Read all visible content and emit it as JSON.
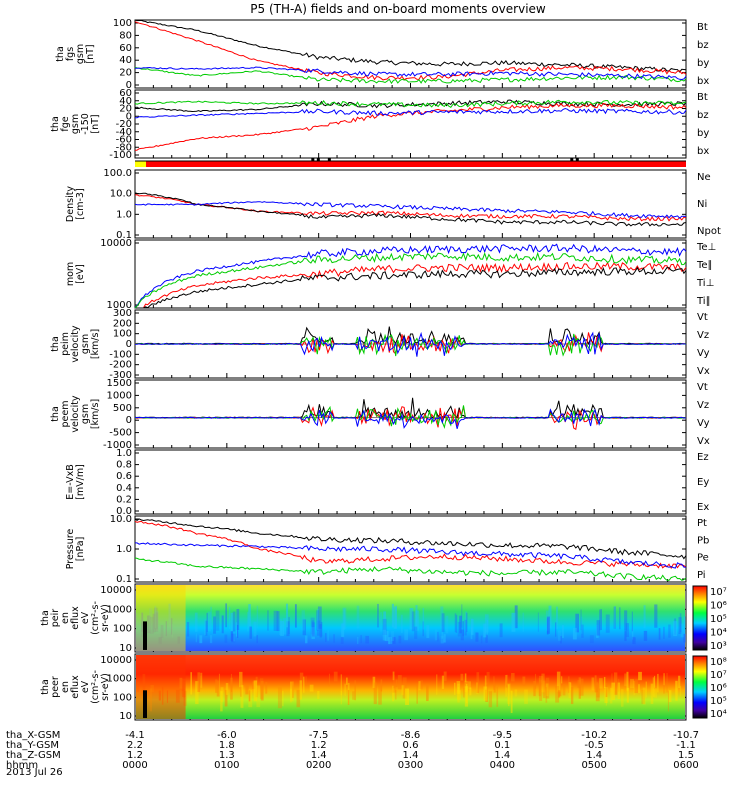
{
  "title": "P5 (TH-A) fields and on-board moments overview",
  "date": "2013 Jul 26",
  "colors": {
    "black": "#000000",
    "red": "#ff0000",
    "green": "#00cc00",
    "blue": "#0000ff",
    "yellow": "#ffff00",
    "lightgreen": "#22dd22"
  },
  "x_axis": {
    "rows": [
      {
        "label": "tha_X-GSM",
        "values": [
          "-4.1",
          "-6.0",
          "-7.5",
          "-8.6",
          "-9.5",
          "-10.2",
          "-10.7"
        ]
      },
      {
        "label": "tha_Y-GSM",
        "values": [
          "2.2",
          "1.8",
          "1.2",
          "0.6",
          "0.1",
          "-0.5",
          "-1.1"
        ]
      },
      {
        "label": "tha_Z-GSM",
        "values": [
          "1.2",
          "1.3",
          "1.4",
          "1.4",
          "1.4",
          "1.4",
          "1.5"
        ]
      },
      {
        "label": "hhmm",
        "values": [
          "0000",
          "0100",
          "0200",
          "0300",
          "0400",
          "0500",
          "0600"
        ]
      }
    ]
  },
  "chart_data": [
    {
      "type": "line",
      "id": "fgs",
      "ylabel": [
        "tha",
        "fgs",
        "gsm",
        "[nT]"
      ],
      "yticks": [
        "100",
        "80",
        "60",
        "40",
        "20",
        "0"
      ],
      "ylim": [
        0,
        100
      ],
      "series": [
        {
          "name": "Bt",
          "color": "black",
          "approx": [
            100,
            85,
            62,
            45,
            38,
            35,
            37,
            34,
            30,
            25
          ]
        },
        {
          "name": "bz",
          "color": "red",
          "approx": [
            98,
            70,
            40,
            22,
            15,
            16,
            26,
            30,
            28,
            22
          ]
        },
        {
          "name": "by",
          "color": "green",
          "approx": [
            30,
            18,
            25,
            12,
            10,
            10,
            12,
            15,
            16,
            12
          ]
        },
        {
          "name": "bx",
          "color": "blue",
          "approx": [
            30,
            28,
            30,
            25,
            20,
            20,
            22,
            20,
            18,
            15
          ]
        }
      ]
    },
    {
      "type": "line",
      "id": "fge",
      "ylabel": [
        "tha",
        "fge",
        "gsm",
        "-150",
        "[nT]"
      ],
      "yticks": [
        "60",
        "40",
        "20",
        "0",
        "-20",
        "-40",
        "-60",
        "-80",
        "-100"
      ],
      "ylim": [
        -110,
        65
      ],
      "legend_overlap": [
        "Bt",
        "bz",
        "by"
      ],
      "series": [
        {
          "name": "Bt",
          "color": "black",
          "approx": [
            20,
            10,
            15,
            30,
            25,
            30,
            35,
            30,
            28,
            30
          ]
        },
        {
          "name": "bz",
          "color": "red",
          "approx": [
            -90,
            -60,
            -50,
            -30,
            0,
            10,
            20,
            25,
            25,
            20
          ]
        },
        {
          "name": "by",
          "color": "green",
          "approx": [
            30,
            35,
            30,
            32,
            28,
            25,
            30,
            35,
            32,
            30
          ]
        },
        {
          "name": "bx",
          "color": "blue",
          "approx": [
            -5,
            0,
            5,
            10,
            5,
            8,
            10,
            12,
            10,
            8
          ]
        }
      ]
    },
    {
      "type": "flags",
      "id": "flags",
      "segments": [
        {
          "color": "yellow",
          "from": 0,
          "to": 0.02
        },
        {
          "color": "red",
          "from": 0.02,
          "to": 1
        }
      ]
    },
    {
      "type": "line",
      "id": "density",
      "ylabel": [
        "Density",
        "[cm-3]"
      ],
      "yticks": [
        "100.0",
        "10.0",
        "1.0",
        "0.1"
      ],
      "scale": "log",
      "ylim": [
        0.1,
        100
      ],
      "series": [
        {
          "name": "Ne",
          "color": "red",
          "approx": [
            8,
            3,
            1.5,
            1.2,
            1.3,
            1.0,
            0.9,
            0.9,
            0.7,
            0.7
          ]
        },
        {
          "name": "Ni",
          "color": "black",
          "approx": [
            10,
            3,
            1.5,
            0.8,
            1.0,
            0.7,
            0.5,
            0.5,
            0.4,
            0.4
          ]
        },
        {
          "name": "Npot",
          "color": "blue",
          "approx": [
            3,
            3,
            4,
            3,
            2.5,
            2,
            1.6,
            1.4,
            1.0,
            0.9
          ]
        }
      ]
    },
    {
      "type": "line",
      "id": "mom",
      "ylabel": [
        "mom",
        "[eV]"
      ],
      "yticks": [
        "10000",
        "1000"
      ],
      "scale": "log",
      "ylim": [
        400,
        12000
      ],
      "series": [
        {
          "name": "Te⊥",
          "color": "red",
          "approx": [
            300,
            1200,
            1800,
            2200,
            2800,
            3000,
            3000,
            3200,
            3200,
            3000
          ]
        },
        {
          "name": "Te∥",
          "color": "black",
          "approx": [
            300,
            900,
            1300,
            1800,
            2000,
            2200,
            2200,
            2400,
            2500,
            2500
          ]
        },
        {
          "name": "Ti⊥",
          "color": "blue",
          "approx": [
            400,
            2500,
            4000,
            6000,
            7000,
            7500,
            7800,
            8000,
            7000,
            6500
          ]
        },
        {
          "name": "Ti∥",
          "color": "green",
          "approx": [
            400,
            2000,
            3000,
            4500,
            5000,
            5500,
            5000,
            5200,
            4500,
            4200
          ]
        }
      ]
    },
    {
      "type": "line",
      "id": "peim",
      "ylabel": [
        "tha",
        "peim",
        "velocity",
        "gsm",
        "[km/s]"
      ],
      "yticks": [
        "300",
        "200",
        "100",
        "0",
        "-100",
        "-200",
        "-300"
      ],
      "ylim": [
        -300,
        300
      ],
      "series": [
        {
          "name": "Vt",
          "color": "black"
        },
        {
          "name": "Vz",
          "color": "red"
        },
        {
          "name": "Vy",
          "color": "green"
        },
        {
          "name": "Vx",
          "color": "blue"
        }
      ]
    },
    {
      "type": "line",
      "id": "peem",
      "ylabel": [
        "tha",
        "peem",
        "velocity",
        "gsm",
        "[km/s]"
      ],
      "yticks": [
        "1500",
        "1000",
        "500",
        "0",
        "-500",
        "-1000"
      ],
      "ylim": [
        -1200,
        1500
      ],
      "series": [
        {
          "name": "Vt",
          "color": "black"
        },
        {
          "name": "Vz",
          "color": "red"
        },
        {
          "name": "Vy",
          "color": "green"
        },
        {
          "name": "Vx",
          "color": "blue"
        }
      ]
    },
    {
      "type": "line",
      "id": "exb",
      "ylabel": [
        "E=-VxB",
        "[mV/m]"
      ],
      "yticks": [
        "1.0",
        "0.8",
        "0.6",
        "0.4",
        "0.2",
        "0.0"
      ],
      "ylim": [
        0,
        1
      ],
      "series": [
        {
          "name": "Ez",
          "color": "red"
        },
        {
          "name": "Ey",
          "color": "green"
        },
        {
          "name": "Ex",
          "color": "blue"
        }
      ]
    },
    {
      "type": "line",
      "id": "pressure",
      "ylabel": [
        "Pressure",
        "[nPa]"
      ],
      "yticks": [
        "10.0",
        "1.0",
        "0.1"
      ],
      "scale": "log",
      "ylim": [
        0.1,
        10
      ],
      "series": [
        {
          "name": "Pt",
          "color": "black",
          "approx": [
            8,
            5,
            3,
            2,
            1.8,
            1.5,
            1.3,
            1.2,
            0.8,
            0.6
          ]
        },
        {
          "name": "Pb",
          "color": "red",
          "approx": [
            7,
            3,
            1,
            0.4,
            0.5,
            0.6,
            0.5,
            0.4,
            0.35,
            0.3
          ]
        },
        {
          "name": "Pe",
          "color": "green",
          "approx": [
            0.5,
            0.3,
            0.25,
            0.2,
            0.25,
            0.2,
            0.18,
            0.2,
            0.15,
            0.12
          ]
        },
        {
          "name": "Pi",
          "color": "blue",
          "approx": [
            1.5,
            1.3,
            1.2,
            1.0,
            1.0,
            0.8,
            0.7,
            0.6,
            0.4,
            0.3
          ]
        }
      ]
    },
    {
      "type": "heatmap",
      "id": "peir",
      "ylabel": [
        "tha",
        "peir",
        "en",
        "eflux",
        "eV",
        "(cm²-s-",
        "sr-eV)"
      ],
      "yticks": [
        "10000",
        "1000",
        "100",
        "10"
      ],
      "colorbar_ticks": [
        "10⁷",
        "10⁶",
        "10⁵",
        "10⁴",
        "10³"
      ]
    },
    {
      "type": "heatmap",
      "id": "peer",
      "ylabel": [
        "tha",
        "peer",
        "en",
        "eflux",
        "eV",
        "(cm²-s-",
        "sr-eV)"
      ],
      "yticks": [
        "10000",
        "1000",
        "100",
        "10"
      ],
      "colorbar_ticks": [
        "10⁸",
        "10⁷",
        "10⁶",
        "10⁵",
        "10⁴"
      ]
    }
  ]
}
